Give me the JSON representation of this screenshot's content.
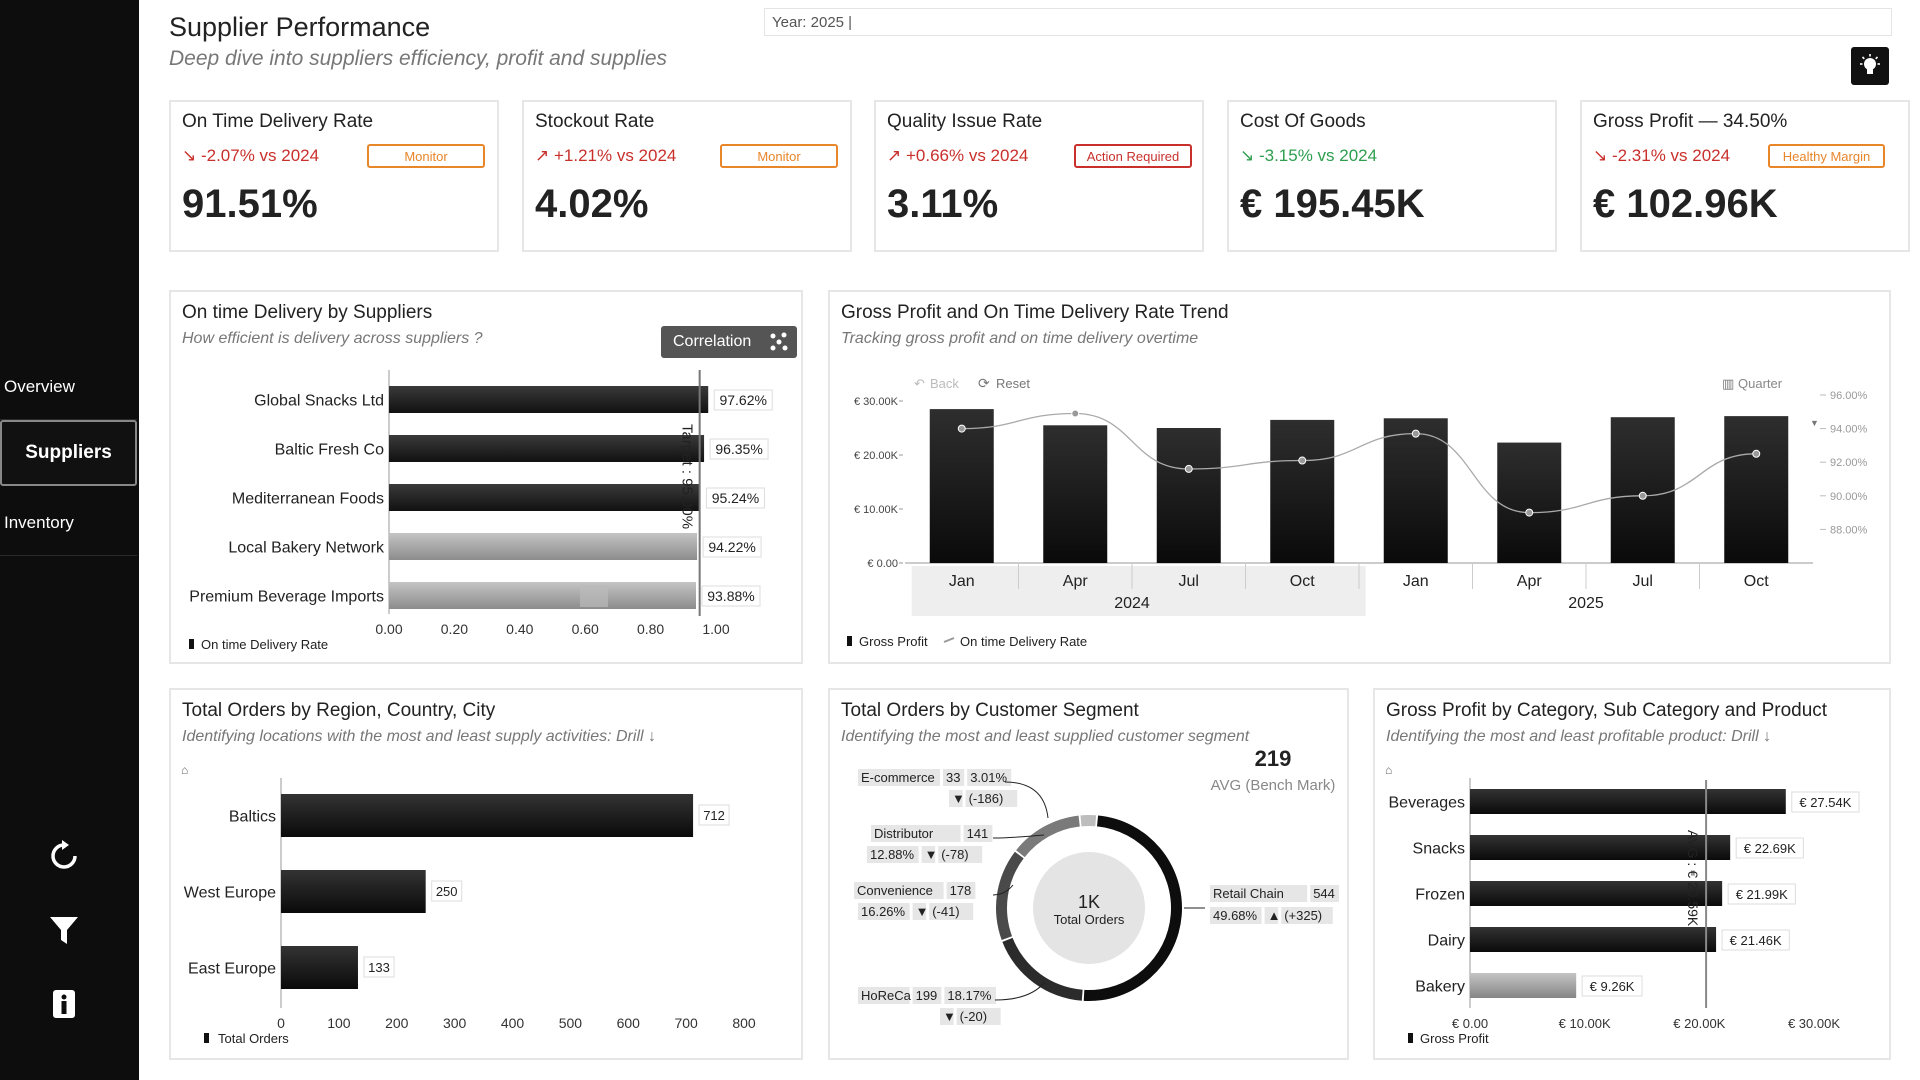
{
  "sidebar": {
    "items": [
      {
        "label": "Overview",
        "active": false
      },
      {
        "label": "Suppliers",
        "active": true
      },
      {
        "label": "Inventory",
        "active": false
      }
    ],
    "icons": [
      "refresh-icon",
      "filter-icon",
      "info-icon"
    ]
  },
  "header": {
    "title": "Supplier Performance",
    "subtitle": "Deep dive into suppliers efficiency, profit and supplies",
    "year_filter": "Year: 2025 |"
  },
  "kpis": [
    {
      "title": "On Time Delivery Rate",
      "delta": "↘ -2.07% vs 2024",
      "delta_color": "red",
      "badge": "Monitor",
      "badge_color": "orange",
      "value": "91.51%"
    },
    {
      "title": "Stockout Rate",
      "delta": "↗ +1.21% vs 2024",
      "delta_color": "red",
      "badge": "Monitor",
      "badge_color": "orange",
      "value": "4.02%"
    },
    {
      "title": "Quality Issue Rate",
      "delta": "↗ +0.66% vs 2024",
      "delta_color": "red",
      "badge": "Action Required",
      "badge_color": "red",
      "value": "3.11%"
    },
    {
      "title": "Cost Of Goods",
      "delta": "↘ -3.15% vs 2024",
      "delta_color": "green",
      "badge": "",
      "badge_color": "",
      "value": "€ 195.45K"
    },
    {
      "title": "Gross Profit — 34.50%",
      "delta": "↘ -2.31% vs 2024",
      "delta_color": "red",
      "badge": "Healthy Margin",
      "badge_color": "orange",
      "value": "€ 102.96K"
    }
  ],
  "delivery_chart": {
    "title": "On time Delivery by Suppliers",
    "subtitle": "How efficient is delivery across suppliers ?",
    "button": "Correlation",
    "target_label": "Target : 95.00%",
    "legend": "On time Delivery Rate",
    "colors": {
      "dark": "#111111",
      "gray": "#8c8c8c"
    }
  },
  "trend_chart": {
    "title": "Gross Profit and On Time Delivery Rate Trend",
    "subtitle": "Tracking gross profit and on time delivery overtime",
    "back": "Back",
    "reset": "Reset",
    "quarter": "Quarter",
    "years": [
      "2024",
      "2025"
    ],
    "legend": [
      "Gross Profit",
      "On time Delivery Rate"
    ]
  },
  "region_chart": {
    "title": "Total Orders by Region, Country, City",
    "subtitle": "Identifying locations with the most and least supply activities: Drill ↓",
    "legend": "Total Orders"
  },
  "segment_chart": {
    "title": "Total Orders by Customer Segment",
    "subtitle": "Identifying the most and least supplied customer segment",
    "bench_value": "219",
    "bench_label": "AVG (Bench Mark)",
    "center_value": "1K",
    "center_label": "Total Orders",
    "labels": [
      {
        "line1": [
          "E-commerce",
          "33",
          "3.01%"
        ],
        "line2": [
          "▼",
          "(-186)"
        ]
      },
      {
        "line1": [
          "Distributor",
          "141"
        ],
        "line2": [
          "12.88%",
          "▼",
          "(-78)"
        ]
      },
      {
        "line1": [
          "Convenience",
          "178"
        ],
        "line2": [
          "16.26%",
          "▼",
          "(-41)"
        ]
      },
      {
        "line1": [
          "HoReCa",
          "199",
          "18.17%"
        ],
        "line2": [
          "▼",
          "(-20)"
        ]
      },
      {
        "line1": [
          "Retail Chain",
          "544"
        ],
        "line2": [
          "49.68%",
          "▲",
          "(+325)"
        ]
      }
    ]
  },
  "category_chart": {
    "title": "Gross Profit by Category, Sub Category and Product",
    "subtitle": "Identifying the most and least profitable product: Drill ↓",
    "avg_label": "AVG : € 20.59K",
    "legend": "Gross Profit"
  },
  "chart_data": [
    {
      "type": "bar",
      "orientation": "horizontal",
      "categories": [
        "Global Snacks Ltd",
        "Baltic Fresh Co",
        "Mediterranean Foods",
        "Local Bakery Network",
        "Premium Beverage Imports"
      ],
      "values": [
        0.9762,
        0.9635,
        0.9524,
        0.9422,
        0.9388
      ],
      "data_labels": [
        "97.62%",
        "96.35%",
        "95.24%",
        "94.22%",
        "93.88%"
      ],
      "bar_color": [
        "dark",
        "dark",
        "dark",
        "gray",
        "gray"
      ],
      "xlim": [
        0,
        1.0
      ],
      "xticks": [
        "0.00",
        "0.20",
        "0.40",
        "0.60",
        "0.80",
        "1.00"
      ],
      "target": 0.95
    },
    {
      "type": "bar",
      "categories": [
        "Jan",
        "Apr",
        "Jul",
        "Oct",
        "Jan",
        "Apr",
        "Jul",
        "Oct"
      ],
      "series": [
        {
          "name": "Gross Profit",
          "type": "bar",
          "values": [
            28500,
            25500,
            25000,
            26500,
            26800,
            22300,
            27000,
            27200
          ]
        },
        {
          "name": "On time Delivery Rate",
          "type": "line",
          "values": [
            94.0,
            94.9,
            91.6,
            92.1,
            93.7,
            89.0,
            90.0,
            92.5
          ]
        }
      ],
      "ylim": [
        0,
        30000
      ],
      "yticks": [
        "€ 0.00",
        "€ 10.00K",
        "€ 20.00K",
        "€ 30.00K"
      ],
      "y2lim": [
        86.0,
        96.0
      ],
      "y2ticks": [
        "88.00%",
        "90.00%",
        "92.00%",
        "94.00%",
        "96.00%"
      ]
    },
    {
      "type": "bar",
      "orientation": "horizontal",
      "categories": [
        "Baltics",
        "West Europe",
        "East Europe"
      ],
      "values": [
        712,
        250,
        133
      ],
      "xlim": [
        0,
        800
      ],
      "xticks": [
        "0",
        "100",
        "200",
        "300",
        "400",
        "500",
        "600",
        "700",
        "800"
      ]
    },
    {
      "type": "pie",
      "donut": true,
      "categories": [
        "E-commerce",
        "Distributor",
        "Convenience",
        "HoReCa",
        "Retail Chain"
      ],
      "values": [
        33,
        141,
        178,
        199,
        544
      ],
      "percents": [
        "3.01%",
        "12.88%",
        "16.26%",
        "18.17%",
        "49.68%"
      ],
      "colors": [
        "#bdbdbd",
        "#7a7a7a",
        "#4a4a4a",
        "#2b2b2b",
        "#0d0d0d"
      ]
    },
    {
      "type": "bar",
      "orientation": "horizontal",
      "categories": [
        "Beverages",
        "Snacks",
        "Frozen",
        "Dairy",
        "Bakery"
      ],
      "values": [
        27540,
        22690,
        21990,
        21460,
        9260
      ],
      "data_labels": [
        "€ 27.54K",
        "€ 22.69K",
        "€ 21.99K",
        "€ 21.46K",
        "€ 9.26K"
      ],
      "bar_color": [
        "dark",
        "dark",
        "dark",
        "dark",
        "gray"
      ],
      "xlim": [
        0,
        30000
      ],
      "xticks": [
        "€ 0.00",
        "€ 10.00K",
        "€ 20.00K",
        "€ 30.00K"
      ],
      "avg": 20590
    }
  ]
}
